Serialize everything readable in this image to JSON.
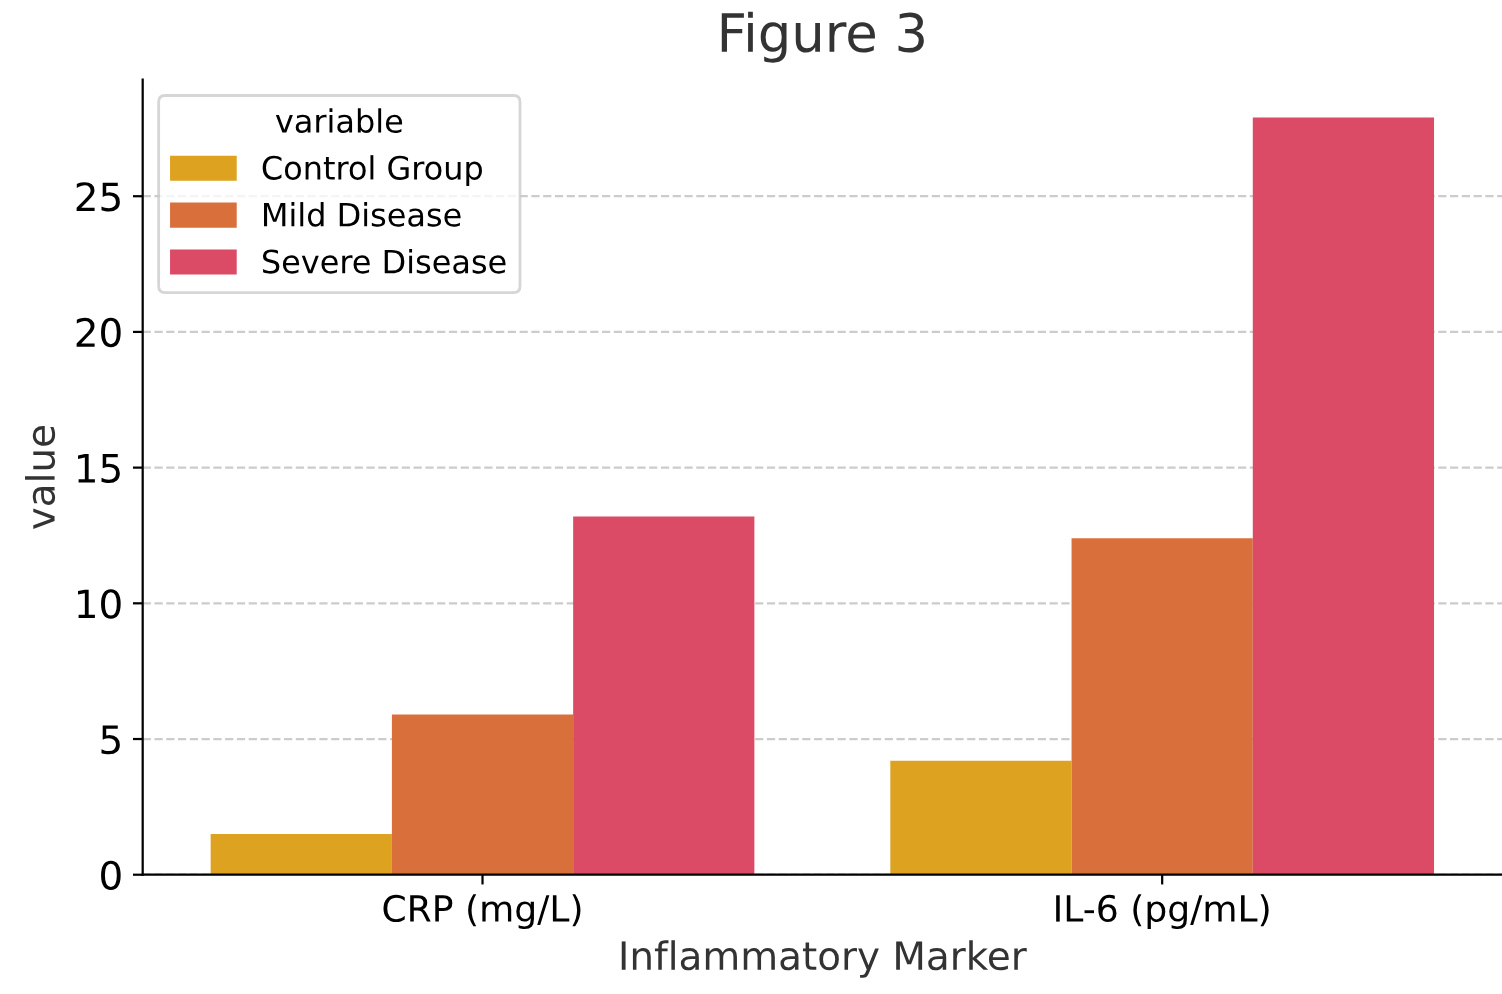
{
  "chart_data": {
    "type": "bar",
    "title": "Figure 3",
    "xlabel": "Inflammatory Marker",
    "ylabel": "value",
    "legend_title": "variable",
    "categories": [
      "CRP (mg/L)",
      "IL-6 (pg/mL)"
    ],
    "series": [
      {
        "name": "Control Group",
        "color": "#dea221",
        "values": [
          1.5,
          4.2
        ]
      },
      {
        "name": "Mild Disease",
        "color": "#d9703c",
        "values": [
          5.9,
          12.4
        ]
      },
      {
        "name": "Severe Disease",
        "color": "#dc4b66",
        "values": [
          13.2,
          27.9
        ]
      }
    ],
    "ylim": [
      0,
      29.3
    ],
    "yticks": [
      0,
      5,
      10,
      15,
      20,
      25
    ],
    "grid": "y",
    "legend": "top left"
  }
}
